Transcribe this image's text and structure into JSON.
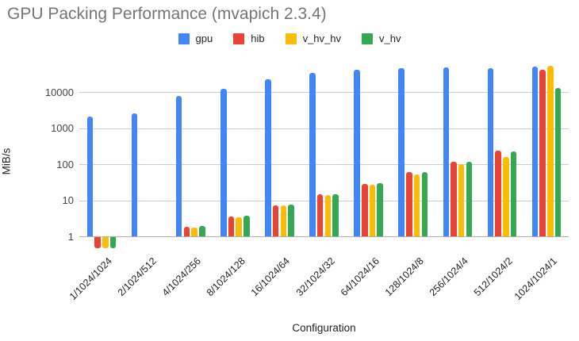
{
  "title": "GPU Packing Performance (mvapich 2.3.4)",
  "style_colors": {
    "title_text": "#757575",
    "axis_tick_text": "#444444",
    "label_text": "#222222",
    "grid": "#cccccc",
    "baseline": "#b0b0b0"
  },
  "chart_data": {
    "type": "bar",
    "title": "GPU Packing Performance (mvapich 2.3.4)",
    "xlabel": "Configuration",
    "ylabel": "MiB/s",
    "y_scale": "log",
    "y_ticks": [
      1,
      10,
      100,
      1000,
      10000
    ],
    "ylim_approx": [
      0.45,
      70000
    ],
    "grid": true,
    "legend_position": "top",
    "categories": [
      "1/1024/1024",
      "2/1024/512",
      "4/1024/256",
      "8/1024/128",
      "16/1024/64",
      "32/1024/32",
      "64/1024/16",
      "128/1024/8",
      "256/1024/4",
      "512/1024/2",
      "1024/1024/1"
    ],
    "series": [
      {
        "name": "gpu",
        "color": "#4285F4",
        "values": [
          2100,
          2600,
          8000,
          12600,
          23000,
          34000,
          43000,
          46000,
          49000,
          46000,
          52000
        ]
      },
      {
        "name": "hib",
        "color": "#EA4335",
        "values": [
          0.5,
          null,
          1.8,
          3.6,
          7.4,
          15,
          29,
          60,
          118,
          235,
          42000
        ]
      },
      {
        "name": "v_hv_hv",
        "color": "#FBBC04",
        "values": [
          0.5,
          null,
          1.75,
          3.4,
          7.4,
          14,
          27,
          52,
          100,
          162,
          55000
        ]
      },
      {
        "name": "v_hv",
        "color": "#34A853",
        "values": [
          0.5,
          null,
          1.9,
          3.7,
          7.6,
          15,
          30,
          60,
          118,
          225,
          13000
        ]
      }
    ]
  }
}
